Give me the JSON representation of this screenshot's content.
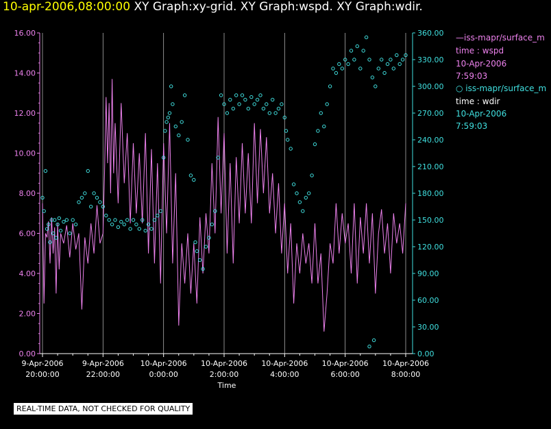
{
  "header": {
    "time": "10-apr-2006,08:00:00",
    "graphs": "XY Graph:xy-grid.  XY Graph:wspd.  XY Graph:wdir."
  },
  "notice": "REAL-TIME DATA, NOT CHECKED FOR QUALITY",
  "colors": {
    "wspd": "#ee82ee",
    "wdir": "#40e0e0",
    "grid": "#b0b0b0",
    "title_time": "#ffff00"
  },
  "legend": [
    {
      "label": "iss-mapr/surface_m",
      "line2": "time : wspd",
      "line3": "10-Apr-2006",
      "line4": "7:59:03"
    },
    {
      "label": "iss-mapr/surface_m",
      "line2": "time : wdir",
      "line3": "10-Apr-2006",
      "line4": "7:59:03"
    }
  ],
  "chart_data": {
    "type": "line",
    "xlabel": "Time",
    "x_ticks": [
      {
        "date": "9-Apr-2006",
        "time": "20:00:00",
        "hours": 0
      },
      {
        "date": "9-Apr-2006",
        "time": "22:00:00",
        "hours": 2
      },
      {
        "date": "10-Apr-2006",
        "time": "0:00:00",
        "hours": 4
      },
      {
        "date": "10-Apr-2006",
        "time": "2:00:00",
        "hours": 6
      },
      {
        "date": "10-Apr-2006",
        "time": "4:00:00",
        "hours": 8
      },
      {
        "date": "10-Apr-2006",
        "time": "6:00:00",
        "hours": 10
      },
      {
        "date": "10-Apr-2006",
        "time": "8:00:00",
        "hours": 12
      }
    ],
    "x_range_hours": [
      0,
      12
    ],
    "y_left": {
      "series": "wspd",
      "range": [
        0,
        16
      ],
      "ticks": [
        "0.00",
        "2.00",
        "4.00",
        "6.00",
        "8.00",
        "10.00",
        "12.00",
        "14.00",
        "16.00"
      ]
    },
    "y_right": {
      "series": "wdir",
      "range": [
        0,
        360
      ],
      "ticks": [
        "0.00",
        "30.00",
        "60.00",
        "90.00",
        "120.00",
        "150.00",
        "180.00",
        "210.00",
        "240.00",
        "270.00",
        "300.00",
        "330.00",
        "360.00"
      ]
    },
    "vertical_grid": true,
    "series": [
      {
        "key": "wspd",
        "style": "line",
        "axis": "left",
        "points": [
          [
            0.0,
            7.5
          ],
          [
            0.05,
            2.5
          ],
          [
            0.1,
            6.0
          ],
          [
            0.15,
            5.8
          ],
          [
            0.2,
            6.6
          ],
          [
            0.25,
            4.5
          ],
          [
            0.3,
            6.8
          ],
          [
            0.35,
            5.0
          ],
          [
            0.4,
            6.3
          ],
          [
            0.45,
            3.0
          ],
          [
            0.5,
            6.5
          ],
          [
            0.55,
            4.2
          ],
          [
            0.6,
            6.0
          ],
          [
            0.7,
            5.5
          ],
          [
            0.8,
            6.4
          ],
          [
            0.9,
            4.8
          ],
          [
            1.0,
            6.5
          ],
          [
            1.1,
            5.2
          ],
          [
            1.2,
            6.0
          ],
          [
            1.3,
            2.2
          ],
          [
            1.4,
            5.8
          ],
          [
            1.5,
            4.5
          ],
          [
            1.6,
            6.5
          ],
          [
            1.7,
            5.0
          ],
          [
            1.8,
            7.4
          ],
          [
            1.9,
            5.5
          ],
          [
            2.0,
            6.0
          ],
          [
            2.05,
            9.0
          ],
          [
            2.1,
            12.8
          ],
          [
            2.15,
            9.5
          ],
          [
            2.2,
            12.5
          ],
          [
            2.25,
            8.0
          ],
          [
            2.3,
            13.7
          ],
          [
            2.35,
            9.0
          ],
          [
            2.4,
            11.5
          ],
          [
            2.5,
            7.5
          ],
          [
            2.6,
            12.5
          ],
          [
            2.7,
            8.5
          ],
          [
            2.8,
            11.0
          ],
          [
            2.9,
            6.5
          ],
          [
            3.0,
            10.5
          ],
          [
            3.1,
            7.0
          ],
          [
            3.2,
            10.0
          ],
          [
            3.3,
            6.5
          ],
          [
            3.4,
            11.0
          ],
          [
            3.5,
            5.0
          ],
          [
            3.6,
            10.2
          ],
          [
            3.7,
            4.5
          ],
          [
            3.8,
            9.5
          ],
          [
            3.9,
            3.5
          ],
          [
            4.0,
            10.5
          ],
          [
            4.1,
            6.0
          ],
          [
            4.2,
            11.5
          ],
          [
            4.3,
            4.5
          ],
          [
            4.4,
            9.0
          ],
          [
            4.5,
            1.4
          ],
          [
            4.6,
            5.5
          ],
          [
            4.7,
            3.5
          ],
          [
            4.8,
            6.0
          ],
          [
            4.9,
            3.0
          ],
          [
            5.0,
            5.5
          ],
          [
            5.1,
            2.5
          ],
          [
            5.2,
            6.8
          ],
          [
            5.3,
            4.0
          ],
          [
            5.4,
            7.0
          ],
          [
            5.5,
            5.0
          ],
          [
            5.6,
            9.5
          ],
          [
            5.7,
            6.0
          ],
          [
            5.8,
            11.8
          ],
          [
            5.9,
            7.0
          ],
          [
            6.0,
            11.0
          ],
          [
            6.1,
            5.0
          ],
          [
            6.2,
            9.5
          ],
          [
            6.3,
            4.5
          ],
          [
            6.4,
            9.8
          ],
          [
            6.5,
            6.5
          ],
          [
            6.6,
            10.5
          ],
          [
            6.7,
            7.0
          ],
          [
            6.8,
            10.0
          ],
          [
            6.9,
            6.5
          ],
          [
            7.0,
            11.5
          ],
          [
            7.1,
            7.5
          ],
          [
            7.2,
            11.2
          ],
          [
            7.3,
            8.0
          ],
          [
            7.4,
            10.8
          ],
          [
            7.5,
            7.0
          ],
          [
            7.6,
            9.0
          ],
          [
            7.7,
            6.0
          ],
          [
            7.8,
            8.5
          ],
          [
            7.9,
            5.0
          ],
          [
            8.0,
            7.5
          ],
          [
            8.1,
            4.0
          ],
          [
            8.2,
            6.5
          ],
          [
            8.3,
            2.5
          ],
          [
            8.4,
            5.5
          ],
          [
            8.5,
            4.0
          ],
          [
            8.6,
            6.0
          ],
          [
            8.7,
            4.5
          ],
          [
            8.8,
            5.5
          ],
          [
            8.9,
            3.5
          ],
          [
            9.0,
            6.5
          ],
          [
            9.1,
            3.5
          ],
          [
            9.2,
            5.0
          ],
          [
            9.3,
            1.1
          ],
          [
            9.4,
            3.0
          ],
          [
            9.5,
            5.5
          ],
          [
            9.6,
            4.5
          ],
          [
            9.7,
            7.5
          ],
          [
            9.8,
            5.0
          ],
          [
            9.9,
            7.0
          ],
          [
            10.0,
            5.5
          ],
          [
            10.1,
            6.5
          ],
          [
            10.2,
            4.0
          ],
          [
            10.3,
            7.5
          ],
          [
            10.4,
            3.5
          ],
          [
            10.5,
            6.8
          ],
          [
            10.6,
            5.0
          ],
          [
            10.7,
            7.5
          ],
          [
            10.8,
            4.5
          ],
          [
            10.9,
            7.0
          ],
          [
            11.0,
            3.0
          ],
          [
            11.1,
            6.0
          ],
          [
            11.2,
            7.2
          ],
          [
            11.3,
            5.0
          ],
          [
            11.4,
            6.5
          ],
          [
            11.5,
            4.0
          ],
          [
            11.6,
            7.0
          ],
          [
            11.7,
            5.5
          ],
          [
            11.8,
            6.5
          ],
          [
            11.9,
            5.0
          ],
          [
            12.0,
            7.5
          ]
        ]
      },
      {
        "key": "wdir",
        "style": "markers",
        "axis": "right",
        "points": [
          [
            0.0,
            175
          ],
          [
            0.05,
            160
          ],
          [
            0.1,
            205
          ],
          [
            0.15,
            140
          ],
          [
            0.2,
            145
          ],
          [
            0.25,
            125
          ],
          [
            0.3,
            150
          ],
          [
            0.35,
            135
          ],
          [
            0.4,
            150
          ],
          [
            0.45,
            130
          ],
          [
            0.5,
            145
          ],
          [
            0.55,
            152
          ],
          [
            0.6,
            138
          ],
          [
            0.7,
            148
          ],
          [
            0.8,
            150
          ],
          [
            0.9,
            135
          ],
          [
            1.0,
            150
          ],
          [
            1.1,
            145
          ],
          [
            1.2,
            170
          ],
          [
            1.3,
            175
          ],
          [
            1.4,
            180
          ],
          [
            1.5,
            205
          ],
          [
            1.6,
            165
          ],
          [
            1.7,
            180
          ],
          [
            1.8,
            175
          ],
          [
            1.9,
            170
          ],
          [
            2.0,
            165
          ],
          [
            2.1,
            155
          ],
          [
            2.2,
            150
          ],
          [
            2.3,
            145
          ],
          [
            2.4,
            150
          ],
          [
            2.5,
            142
          ],
          [
            2.6,
            148
          ],
          [
            2.7,
            145
          ],
          [
            2.8,
            150
          ],
          [
            2.9,
            140
          ],
          [
            3.0,
            150
          ],
          [
            3.1,
            145
          ],
          [
            3.2,
            140
          ],
          [
            3.3,
            150
          ],
          [
            3.4,
            138
          ],
          [
            3.5,
            145
          ],
          [
            3.6,
            140
          ],
          [
            3.7,
            150
          ],
          [
            3.8,
            155
          ],
          [
            3.9,
            160
          ],
          [
            4.0,
            220
          ],
          [
            4.05,
            250
          ],
          [
            4.1,
            260
          ],
          [
            4.15,
            265
          ],
          [
            4.2,
            270
          ],
          [
            4.25,
            300
          ],
          [
            4.3,
            280
          ],
          [
            4.4,
            255
          ],
          [
            4.5,
            245
          ],
          [
            4.6,
            260
          ],
          [
            4.7,
            290
          ],
          [
            4.8,
            240
          ],
          [
            4.9,
            200
          ],
          [
            5.0,
            195
          ],
          [
            5.05,
            125
          ],
          [
            5.1,
            115
          ],
          [
            5.2,
            105
          ],
          [
            5.3,
            95
          ],
          [
            5.4,
            120
          ],
          [
            5.5,
            130
          ],
          [
            5.6,
            145
          ],
          [
            5.7,
            160
          ],
          [
            5.8,
            220
          ],
          [
            5.9,
            290
          ],
          [
            6.0,
            280
          ],
          [
            6.1,
            270
          ],
          [
            6.2,
            285
          ],
          [
            6.3,
            275
          ],
          [
            6.4,
            290
          ],
          [
            6.5,
            280
          ],
          [
            6.6,
            290
          ],
          [
            6.7,
            285
          ],
          [
            6.8,
            275
          ],
          [
            6.9,
            288
          ],
          [
            7.0,
            280
          ],
          [
            7.1,
            285
          ],
          [
            7.2,
            290
          ],
          [
            7.3,
            275
          ],
          [
            7.4,
            280
          ],
          [
            7.5,
            270
          ],
          [
            7.6,
            285
          ],
          [
            7.7,
            270
          ],
          [
            7.8,
            275
          ],
          [
            7.9,
            280
          ],
          [
            8.0,
            265
          ],
          [
            8.05,
            250
          ],
          [
            8.1,
            240
          ],
          [
            8.2,
            230
          ],
          [
            8.3,
            190
          ],
          [
            8.4,
            180
          ],
          [
            8.5,
            170
          ],
          [
            8.6,
            160
          ],
          [
            8.7,
            175
          ],
          [
            8.8,
            180
          ],
          [
            8.9,
            200
          ],
          [
            9.0,
            235
          ],
          [
            9.1,
            250
          ],
          [
            9.2,
            270
          ],
          [
            9.3,
            255
          ],
          [
            9.4,
            280
          ],
          [
            9.5,
            300
          ],
          [
            9.6,
            320
          ],
          [
            9.7,
            315
          ],
          [
            9.8,
            325
          ],
          [
            9.9,
            320
          ],
          [
            10.0,
            330
          ],
          [
            10.1,
            325
          ],
          [
            10.2,
            340
          ],
          [
            10.3,
            330
          ],
          [
            10.4,
            345
          ],
          [
            10.5,
            320
          ],
          [
            10.6,
            340
          ],
          [
            10.7,
            355
          ],
          [
            10.8,
            330
          ],
          [
            10.9,
            310
          ],
          [
            11.0,
            300
          ],
          [
            11.1,
            320
          ],
          [
            11.2,
            330
          ],
          [
            11.3,
            315
          ],
          [
            11.4,
            325
          ],
          [
            11.5,
            330
          ],
          [
            11.6,
            320
          ],
          [
            11.7,
            335
          ],
          [
            11.8,
            325
          ],
          [
            11.9,
            330
          ],
          [
            12.0,
            335
          ],
          [
            10.95,
            15
          ],
          [
            10.8,
            8
          ]
        ]
      }
    ]
  }
}
